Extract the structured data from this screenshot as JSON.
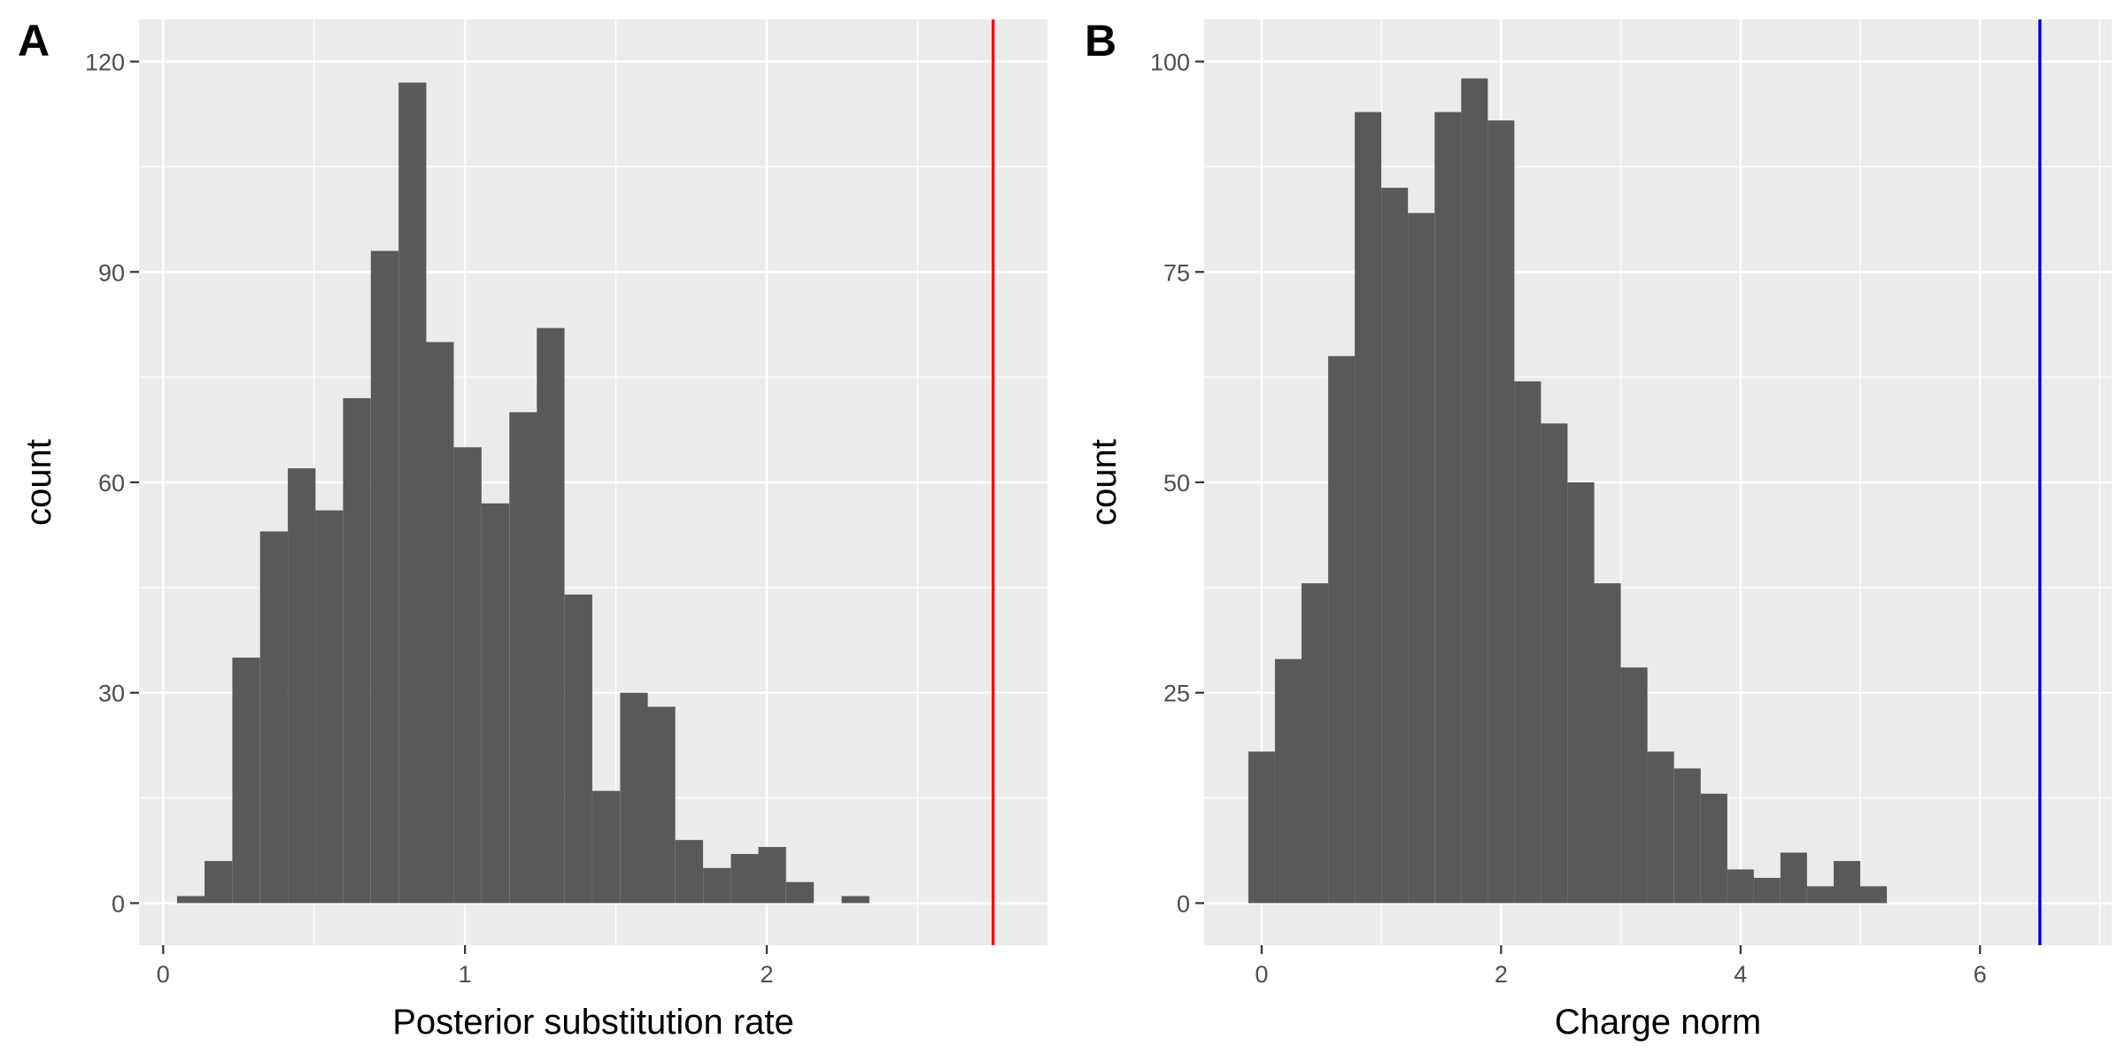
{
  "colors": {
    "bar": "#595959",
    "panel_background": "#EBEBEB",
    "grid": "#FFFFFF"
  },
  "chart_data": [
    {
      "type": "bar",
      "panel_tag": "A",
      "xlabel": "Posterior substitution rate",
      "ylabel": "count",
      "xlim": [
        -0.08,
        2.93
      ],
      "ylim": [
        -6,
        126
      ],
      "xticks": [
        0,
        1,
        2
      ],
      "yticks": [
        0,
        30,
        60,
        90,
        120
      ],
      "grid": true,
      "bin_width": 0.0917,
      "bins": [
        {
          "x": 0.092,
          "count": 1
        },
        {
          "x": 0.183,
          "count": 6
        },
        {
          "x": 0.275,
          "count": 35
        },
        {
          "x": 0.367,
          "count": 53
        },
        {
          "x": 0.459,
          "count": 62
        },
        {
          "x": 0.55,
          "count": 56
        },
        {
          "x": 0.642,
          "count": 72
        },
        {
          "x": 0.734,
          "count": 93
        },
        {
          "x": 0.826,
          "count": 117
        },
        {
          "x": 0.917,
          "count": 80
        },
        {
          "x": 1.009,
          "count": 65
        },
        {
          "x": 1.101,
          "count": 57
        },
        {
          "x": 1.193,
          "count": 70
        },
        {
          "x": 1.284,
          "count": 82
        },
        {
          "x": 1.376,
          "count": 44
        },
        {
          "x": 1.468,
          "count": 16
        },
        {
          "x": 1.56,
          "count": 30
        },
        {
          "x": 1.651,
          "count": 28
        },
        {
          "x": 1.743,
          "count": 9
        },
        {
          "x": 1.835,
          "count": 5
        },
        {
          "x": 1.927,
          "count": 7
        },
        {
          "x": 2.018,
          "count": 8
        },
        {
          "x": 2.11,
          "count": 3
        },
        {
          "x": 2.294,
          "count": 1
        }
      ],
      "reference_line": {
        "x": 2.75,
        "color": "#FF0000"
      }
    },
    {
      "type": "bar",
      "panel_tag": "B",
      "xlabel": "Charge norm",
      "ylabel": "count",
      "xlim": [
        -0.48,
        7.1
      ],
      "ylim": [
        -5,
        105
      ],
      "xticks": [
        0,
        2,
        4,
        6
      ],
      "yticks": [
        0,
        25,
        50,
        75,
        100
      ],
      "grid": true,
      "bin_width": 0.2222,
      "bins": [
        {
          "x": 0.0,
          "count": 18
        },
        {
          "x": 0.222,
          "count": 29
        },
        {
          "x": 0.444,
          "count": 38
        },
        {
          "x": 0.667,
          "count": 65
        },
        {
          "x": 0.889,
          "count": 94
        },
        {
          "x": 1.111,
          "count": 85
        },
        {
          "x": 1.333,
          "count": 82
        },
        {
          "x": 1.556,
          "count": 94
        },
        {
          "x": 1.778,
          "count": 98
        },
        {
          "x": 2.0,
          "count": 93
        },
        {
          "x": 2.222,
          "count": 62
        },
        {
          "x": 2.444,
          "count": 57
        },
        {
          "x": 2.667,
          "count": 50
        },
        {
          "x": 2.889,
          "count": 38
        },
        {
          "x": 3.111,
          "count": 28
        },
        {
          "x": 3.333,
          "count": 18
        },
        {
          "x": 3.556,
          "count": 16
        },
        {
          "x": 3.778,
          "count": 13
        },
        {
          "x": 4.0,
          "count": 4
        },
        {
          "x": 4.222,
          "count": 3
        },
        {
          "x": 4.444,
          "count": 6
        },
        {
          "x": 4.667,
          "count": 2
        },
        {
          "x": 4.889,
          "count": 5
        },
        {
          "x": 5.111,
          "count": 2
        }
      ],
      "reference_line": {
        "x": 6.5,
        "color": "#0000CC"
      }
    }
  ]
}
